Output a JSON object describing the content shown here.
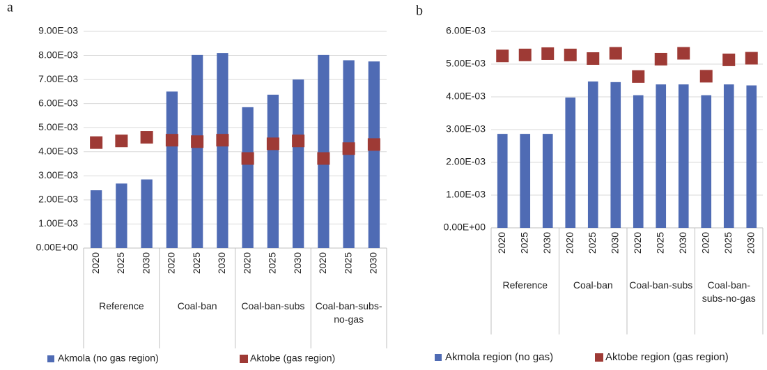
{
  "chart_data": [
    {
      "type": "bar",
      "panel": "a",
      "groups": [
        {
          "name": "Reference",
          "categories": [
            "2020",
            "2025",
            "2030"
          ]
        },
        {
          "name": "Coal-ban",
          "categories": [
            "2020",
            "2025",
            "2030"
          ]
        },
        {
          "name": "Coal-ban-subs",
          "categories": [
            "2020",
            "2025",
            "2030"
          ]
        },
        {
          "name": "Coal-ban-subs-no-gas",
          "categories": [
            "2020",
            "2025",
            "2030"
          ]
        }
      ],
      "series": [
        {
          "name": "Akmola (no gas region)",
          "color": "#4f6bb4",
          "mark": "bar",
          "values": [
            0.0024,
            0.00268,
            0.00285,
            0.0065,
            0.00802,
            0.0081,
            0.00585,
            0.00637,
            0.007,
            0.00802,
            0.0078,
            0.00775
          ]
        },
        {
          "name": "Aktobe (gas region)",
          "color": "#9e3a35",
          "mark": "square",
          "values": [
            0.00438,
            0.00445,
            0.0046,
            0.00448,
            0.00442,
            0.00448,
            0.00372,
            0.00433,
            0.00445,
            0.00372,
            0.00413,
            0.0043
          ]
        }
      ],
      "ylim": [
        0,
        0.009
      ],
      "yticks": [
        {
          "value": 0,
          "label": "0.00E+00"
        },
        {
          "value": 0.001,
          "label": "1.00E-03"
        },
        {
          "value": 0.002,
          "label": "2.00E-03"
        },
        {
          "value": 0.003,
          "label": "3.00E-03"
        },
        {
          "value": 0.004,
          "label": "4.00E-03"
        },
        {
          "value": 0.005,
          "label": "5.00E-03"
        },
        {
          "value": 0.006,
          "label": "6.00E-03"
        },
        {
          "value": 0.007,
          "label": "7.00E-03"
        },
        {
          "value": 0.008,
          "label": "8.00E-03"
        },
        {
          "value": 0.009,
          "label": "9.00E-03"
        }
      ],
      "grid": true,
      "legend": "bottom"
    },
    {
      "type": "bar",
      "panel": "b",
      "groups": [
        {
          "name": "Reference",
          "categories": [
            "2020",
            "2025",
            "2030"
          ]
        },
        {
          "name": "Coal-ban",
          "categories": [
            "2020",
            "2025",
            "2030"
          ]
        },
        {
          "name": "Coal-ban-subs",
          "categories": [
            "2020",
            "2025",
            "2030"
          ]
        },
        {
          "name": "Coal-ban-subs-no-gas",
          "categories": [
            "2020",
            "2025",
            "2030"
          ]
        }
      ],
      "series": [
        {
          "name": "Akmola region (no gas)",
          "color": "#4f6bb4",
          "mark": "bar",
          "values": [
            0.00287,
            0.00287,
            0.00287,
            0.00398,
            0.00447,
            0.00445,
            0.00405,
            0.00438,
            0.00438,
            0.00405,
            0.00438,
            0.00435
          ]
        },
        {
          "name": "Aktobe region (gas region)",
          "color": "#9e3a35",
          "mark": "square",
          "values": [
            0.00525,
            0.00528,
            0.00532,
            0.00528,
            0.00517,
            0.00533,
            0.00462,
            0.00515,
            0.00533,
            0.00463,
            0.00513,
            0.00518
          ]
        }
      ],
      "ylim": [
        0,
        0.006
      ],
      "yticks": [
        {
          "value": 0,
          "label": "0.00E+00"
        },
        {
          "value": 0.001,
          "label": "1.00E-03"
        },
        {
          "value": 0.002,
          "label": "2.00E-03"
        },
        {
          "value": 0.003,
          "label": "3.00E-03"
        },
        {
          "value": 0.004,
          "label": "4.00E-03"
        },
        {
          "value": 0.005,
          "label": "5.00E-03"
        },
        {
          "value": 0.006,
          "label": "6.00E-03"
        }
      ],
      "grid": true,
      "legend": "bottom"
    }
  ]
}
